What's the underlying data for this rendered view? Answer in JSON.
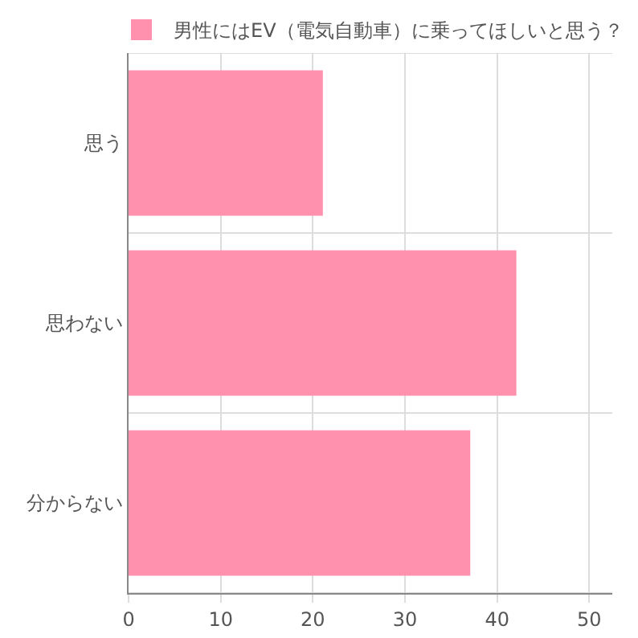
{
  "chart_data": {
    "type": "bar",
    "orientation": "horizontal",
    "categories": [
      "思う",
      "思わない",
      "分からない"
    ],
    "series": [
      {
        "name": "男性にはEV（電気自動車）に乗ってほしいと思う？",
        "color": "#ff91ae",
        "values": [
          21,
          42,
          37
        ]
      }
    ],
    "xlim": [
      0,
      52.5
    ],
    "xticks": [
      0,
      10,
      20,
      30,
      40,
      50
    ],
    "grid": true,
    "legend": "top"
  }
}
